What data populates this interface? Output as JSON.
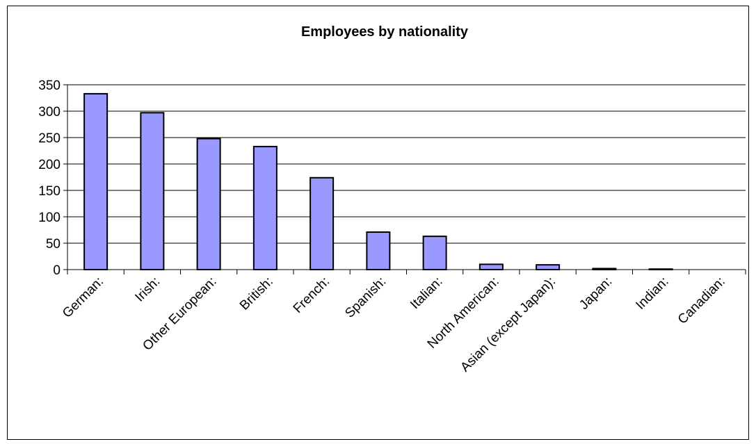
{
  "chart_data": {
    "type": "bar",
    "title": "Employees by nationality",
    "xlabel": "",
    "ylabel": "",
    "categories": [
      "German:",
      "Irish:",
      "Other European:",
      "British:",
      "French:",
      "Spanish:",
      "Italian:",
      "North American:",
      "Asian (except Japan):",
      "Japan:",
      "Indian:",
      "Canadian:"
    ],
    "values": [
      333,
      297,
      248,
      233,
      174,
      71,
      63,
      10,
      9,
      2,
      1,
      0
    ],
    "ylim": [
      0,
      350
    ],
    "yticks": [
      "0",
      "50",
      "100",
      "150",
      "200",
      "250",
      "300",
      "350"
    ],
    "grid": true,
    "legend": "none",
    "bar_color": "#9999ff",
    "bar_outline": "#000000"
  }
}
